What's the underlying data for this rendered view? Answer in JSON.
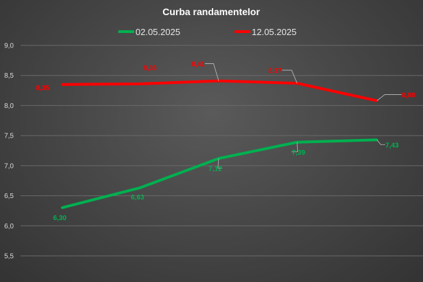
{
  "chart_data": {
    "type": "line",
    "title": "Curba randamentelor",
    "xlabel": "",
    "ylabel": "",
    "ylim": [
      5.5,
      9.0
    ],
    "yticks": [
      "5,5",
      "6,0",
      "6,5",
      "7,0",
      "7,5",
      "8,0",
      "8,5",
      "9,0"
    ],
    "ytick_values": [
      5.5,
      6.0,
      6.5,
      7.0,
      7.5,
      8.0,
      8.5,
      9.0
    ],
    "grid": true,
    "legend_position": "top",
    "series": [
      {
        "name": "02.05.2025",
        "color": "#00b050",
        "values": [
          6.3,
          6.63,
          7.12,
          7.39,
          7.43
        ],
        "labels": [
          "6,30",
          "6,63",
          "7,12",
          "7,39",
          "7,43"
        ]
      },
      {
        "name": "12.05.2025",
        "color": "#ff0000",
        "values": [
          8.35,
          8.36,
          8.41,
          8.37,
          8.08
        ],
        "labels": [
          "8,35",
          "8,36",
          "8,41",
          "8,37",
          "8,08"
        ]
      }
    ]
  }
}
